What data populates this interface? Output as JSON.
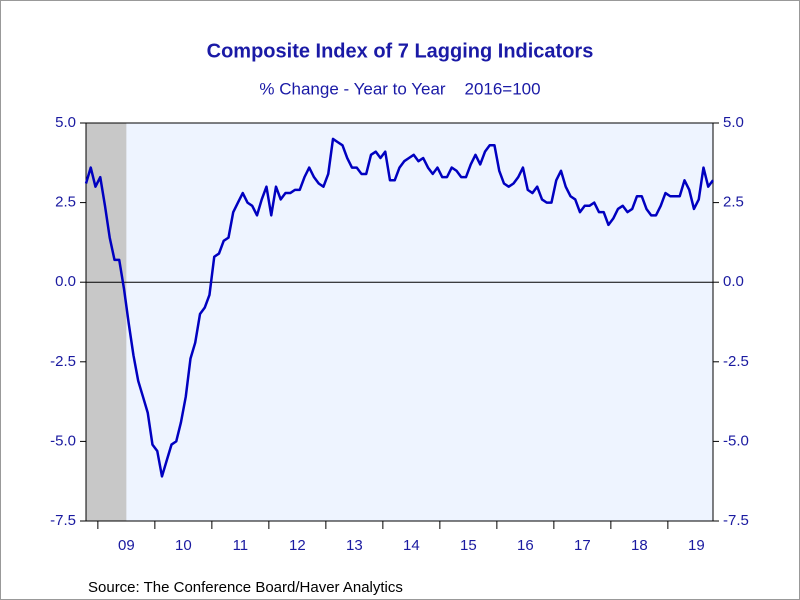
{
  "chart_data": {
    "type": "line",
    "title": "Composite Index of 7 Lagging Indicators",
    "subtitle": "% Change - Year to Year    2016=100",
    "source": "Source:  The Conference Board/Haver Analytics",
    "x": [
      2008.792,
      2008.875,
      2008.958,
      2009.042,
      2009.125,
      2009.208,
      2009.292,
      2009.375,
      2009.458,
      2009.542,
      2009.625,
      2009.708,
      2009.792,
      2009.875,
      2009.958,
      2010.042,
      2010.125,
      2010.208,
      2010.292,
      2010.375,
      2010.458,
      2010.542,
      2010.625,
      2010.708,
      2010.792,
      2010.875,
      2010.958,
      2011.042,
      2011.125,
      2011.208,
      2011.292,
      2011.375,
      2011.458,
      2011.542,
      2011.625,
      2011.708,
      2011.792,
      2011.875,
      2011.958,
      2012.042,
      2012.125,
      2012.208,
      2012.292,
      2012.375,
      2012.458,
      2012.542,
      2012.625,
      2012.708,
      2012.792,
      2012.875,
      2012.958,
      2013.042,
      2013.125,
      2013.208,
      2013.292,
      2013.375,
      2013.458,
      2013.542,
      2013.625,
      2013.708,
      2013.792,
      2013.875,
      2013.958,
      2014.042,
      2014.125,
      2014.208,
      2014.292,
      2014.375,
      2014.458,
      2014.542,
      2014.625,
      2014.708,
      2014.792,
      2014.875,
      2014.958,
      2015.042,
      2015.125,
      2015.208,
      2015.292,
      2015.375,
      2015.458,
      2015.542,
      2015.625,
      2015.708,
      2015.792,
      2015.875,
      2015.958,
      2016.042,
      2016.125,
      2016.208,
      2016.292,
      2016.375,
      2016.458,
      2016.542,
      2016.625,
      2016.708,
      2016.792,
      2016.875,
      2016.958,
      2017.042,
      2017.125,
      2017.208,
      2017.292,
      2017.375,
      2017.458,
      2017.542,
      2017.625,
      2017.708,
      2017.792,
      2017.875,
      2017.958,
      2018.042,
      2018.125,
      2018.208,
      2018.292,
      2018.375,
      2018.458,
      2018.542,
      2018.625,
      2018.708,
      2018.792,
      2018.875,
      2018.958,
      2019.042,
      2019.125,
      2019.208,
      2019.292,
      2019.375,
      2019.458,
      2019.542,
      2019.625,
      2019.708,
      2019.792
    ],
    "series": [
      {
        "name": "Composite Index of 7 Lagging Indicators",
        "color": "#0000c0",
        "values": [
          3.1,
          3.6,
          3.0,
          3.3,
          2.4,
          1.4,
          0.7,
          0.7,
          -0.2,
          -1.3,
          -2.3,
          -3.1,
          -3.6,
          -4.1,
          -5.1,
          -5.3,
          -6.1,
          -5.6,
          -5.1,
          -5.0,
          -4.4,
          -3.6,
          -2.4,
          -1.9,
          -1.0,
          -0.8,
          -0.4,
          0.8,
          0.9,
          1.3,
          1.4,
          2.2,
          2.5,
          2.8,
          2.5,
          2.4,
          2.1,
          2.6,
          3.0,
          2.1,
          3.0,
          2.6,
          2.8,
          2.8,
          2.9,
          2.9,
          3.3,
          3.6,
          3.3,
          3.1,
          3.0,
          3.4,
          4.5,
          4.4,
          4.3,
          3.9,
          3.6,
          3.6,
          3.4,
          3.4,
          4.0,
          4.1,
          3.9,
          4.1,
          3.2,
          3.2,
          3.6,
          3.8,
          3.9,
          4.0,
          3.8,
          3.9,
          3.6,
          3.4,
          3.6,
          3.3,
          3.3,
          3.6,
          3.5,
          3.3,
          3.3,
          3.7,
          4.0,
          3.7,
          4.1,
          4.3,
          4.3,
          3.5,
          3.1,
          3.0,
          3.1,
          3.3,
          3.6,
          2.9,
          2.8,
          3.0,
          2.6,
          2.5,
          2.5,
          3.2,
          3.5,
          3.0,
          2.7,
          2.6,
          2.2,
          2.4,
          2.4,
          2.5,
          2.2,
          2.2,
          1.8,
          2.0,
          2.3,
          2.4,
          2.2,
          2.3,
          2.7,
          2.7,
          2.3,
          2.1,
          2.1,
          2.4,
          2.8,
          2.7,
          2.7,
          2.7,
          3.2,
          2.9,
          2.3,
          2.6,
          3.6,
          3.0,
          3.2
        ]
      }
    ],
    "xlim": [
      2008.792,
      2019.792
    ],
    "xticks": [
      {
        "value": 2009,
        "label": "09"
      },
      {
        "value": 2010,
        "label": "10"
      },
      {
        "value": 2011,
        "label": "11"
      },
      {
        "value": 2012,
        "label": "12"
      },
      {
        "value": 2013,
        "label": "13"
      },
      {
        "value": 2014,
        "label": "14"
      },
      {
        "value": 2015,
        "label": "15"
      },
      {
        "value": 2016,
        "label": "16"
      },
      {
        "value": 2017,
        "label": "17"
      },
      {
        "value": 2018,
        "label": "18"
      },
      {
        "value": 2019,
        "label": "19"
      }
    ],
    "ylim": [
      -7.5,
      5.0
    ],
    "yticks": [
      {
        "value": -7.5,
        "label": "-7.5"
      },
      {
        "value": -5.0,
        "label": "-5.0"
      },
      {
        "value": -2.5,
        "label": "-2.5"
      },
      {
        "value": 0.0,
        "label": "0.0"
      },
      {
        "value": 2.5,
        "label": "2.5"
      },
      {
        "value": 5.0,
        "label": "5.0"
      }
    ],
    "recession": [
      2008.792,
      2009.5
    ],
    "zero_line": true
  }
}
